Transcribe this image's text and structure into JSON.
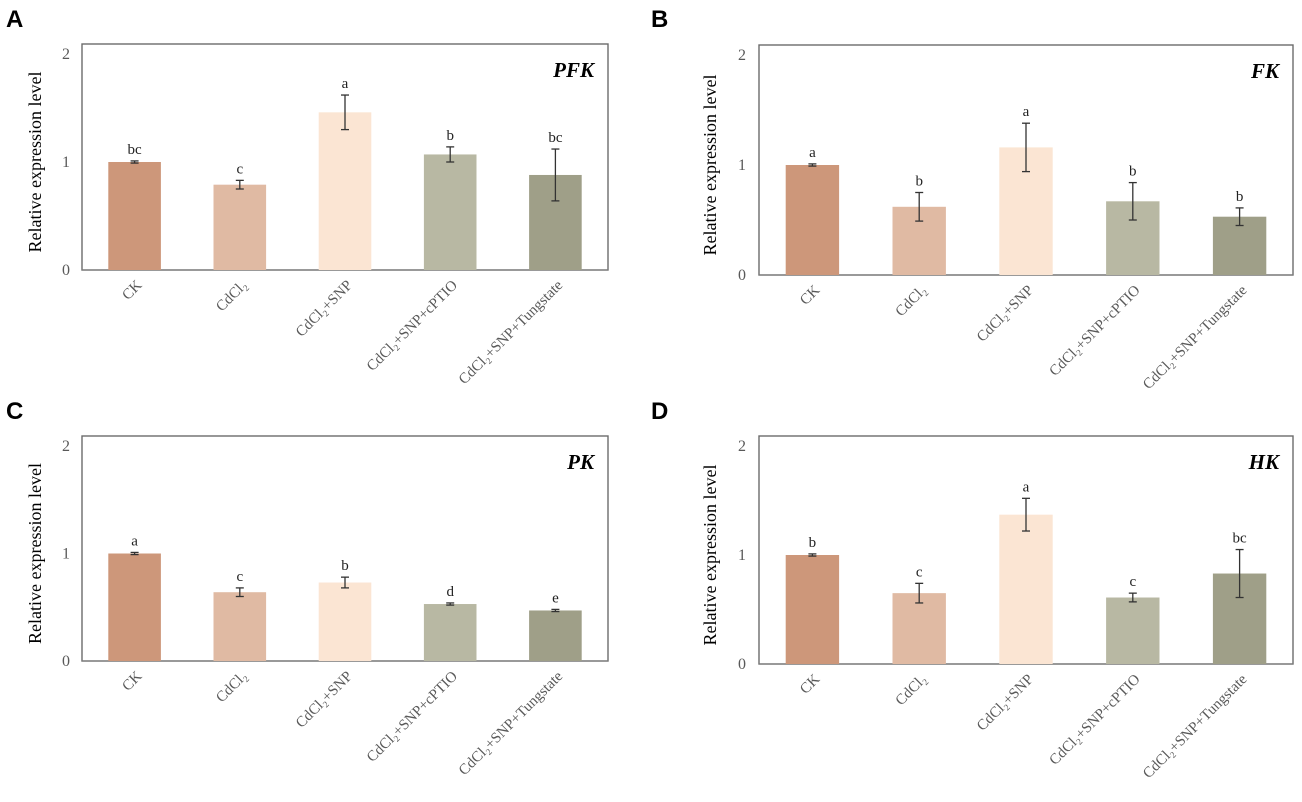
{
  "figure": {
    "categories": [
      "CK",
      "CdCl₂",
      "CdCl₂+SNP",
      "CdCl₂+SNP+cPTIO",
      "CdCl₂+SNP+Tungstate"
    ],
    "bar_colors": [
      "#cd977a",
      "#e0baa3",
      "#fbe5d3",
      "#b8b8a3",
      "#9f9f88"
    ],
    "ylabel": "Relative expression level",
    "yticks": [
      "0",
      "1",
      "2"
    ]
  },
  "chart_data": [
    {
      "panel": "A",
      "type": "bar",
      "title": "PFK",
      "categories": [
        "CK",
        "CdCl₂",
        "CdCl₂+SNP",
        "CdCl₂+SNP+cPTIO",
        "CdCl₂+SNP+Tungstate"
      ],
      "values": [
        1.0,
        0.79,
        1.46,
        1.07,
        0.88
      ],
      "errors": [
        0.01,
        0.04,
        0.16,
        0.07,
        0.24
      ],
      "significance": [
        "bc",
        "c",
        "a",
        "b",
        "bc"
      ],
      "ylabel": "Relative expression level",
      "ylim": [
        0,
        2
      ]
    },
    {
      "panel": "B",
      "type": "bar",
      "title": "FK",
      "categories": [
        "CK",
        "CdCl₂",
        "CdCl₂+SNP",
        "CdCl₂+SNP+cPTIO",
        "CdCl₂+SNP+Tungstate"
      ],
      "values": [
        1.0,
        0.62,
        1.16,
        0.67,
        0.53
      ],
      "errors": [
        0.01,
        0.13,
        0.22,
        0.17,
        0.08
      ],
      "significance": [
        "a",
        "b",
        "a",
        "b",
        "b"
      ],
      "ylabel": "Relative expression level",
      "ylim": [
        0,
        2
      ]
    },
    {
      "panel": "C",
      "type": "bar",
      "title": "PK",
      "categories": [
        "CK",
        "CdCl₂",
        "CdCl₂+SNP",
        "CdCl₂+SNP+cPTIO",
        "CdCl₂+SNP+Tungstate"
      ],
      "values": [
        1.0,
        0.64,
        0.73,
        0.53,
        0.47
      ],
      "errors": [
        0.01,
        0.04,
        0.05,
        0.01,
        0.01
      ],
      "significance": [
        "a",
        "c",
        "b",
        "d",
        "e"
      ],
      "ylabel": "Relative expression level",
      "ylim": [
        0,
        2
      ]
    },
    {
      "panel": "D",
      "type": "bar",
      "title": "HK",
      "categories": [
        "CK",
        "CdCl₂",
        "CdCl₂+SNP",
        "CdCl₂+SNP+cPTIO",
        "CdCl₂+SNP+Tungstate"
      ],
      "values": [
        1.0,
        0.65,
        1.37,
        0.61,
        0.83
      ],
      "errors": [
        0.01,
        0.09,
        0.15,
        0.04,
        0.22
      ],
      "significance": [
        "b",
        "c",
        "a",
        "c",
        "bc"
      ],
      "ylabel": "Relative expression level",
      "ylim": [
        0,
        2
      ]
    }
  ]
}
